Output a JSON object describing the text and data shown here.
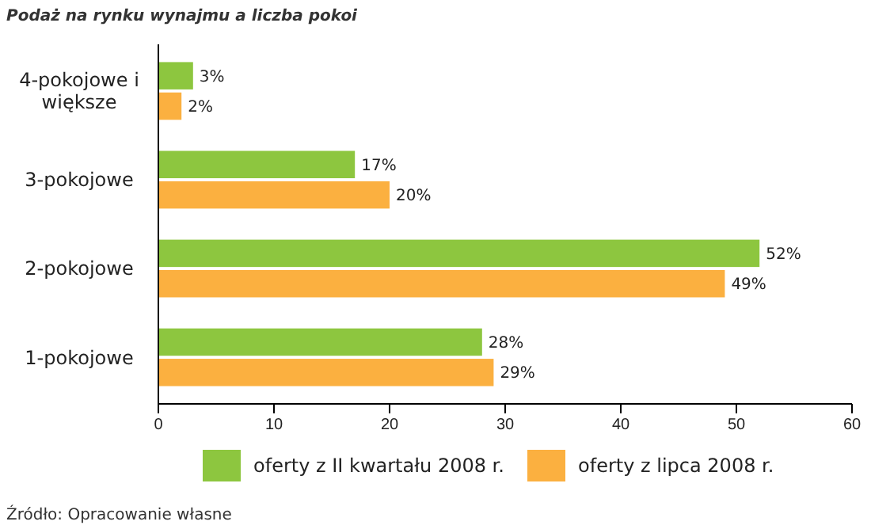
{
  "chart_data": {
    "type": "bar",
    "orientation": "horizontal",
    "title": "Podaż na rynku wynajmu a liczba pokoi",
    "categories": [
      "4-pokojowe i większe",
      "3-pokojowe",
      "2-pokojowe",
      "1-pokojowe"
    ],
    "series": [
      {
        "name": "oferty z II kwartału 2008 r.",
        "color": "#8dc63f",
        "values": [
          3,
          17,
          52,
          28
        ],
        "value_labels": [
          "3%",
          "17%",
          "52%",
          "28%"
        ]
      },
      {
        "name": "oferty z lipca 2008 r.",
        "color": "#fbb040",
        "values": [
          2,
          20,
          49,
          29
        ],
        "value_labels": [
          "2%",
          "20%",
          "49%",
          "29%"
        ]
      }
    ],
    "xlim": [
      0,
      60
    ],
    "xticks": [
      0,
      10,
      20,
      30,
      40,
      50,
      60
    ],
    "grid": false,
    "legend": "bottom",
    "annotations": [
      "Źródło: Opracowanie własne"
    ]
  }
}
